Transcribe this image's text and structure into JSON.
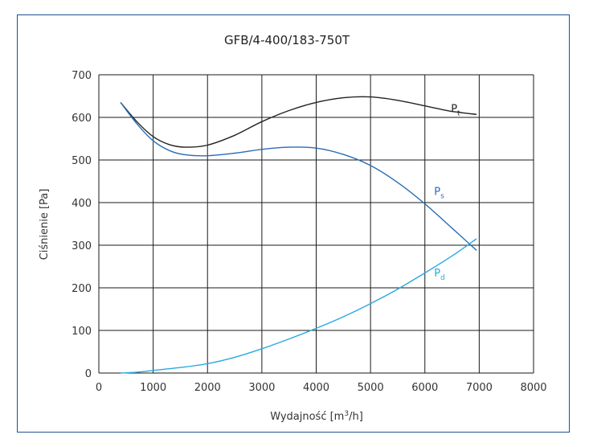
{
  "chart_data": {
    "type": "line",
    "title": "GFB/4-400/183-750T",
    "xlabel": {
      "main": "Wydajność [m",
      "sup": "3",
      "end": "/h]"
    },
    "ylabel": "Ciśnienie [Pa]",
    "xlim": [
      0,
      8000
    ],
    "ylim": [
      0,
      700
    ],
    "xticks": [
      "0",
      "1000",
      "2000",
      "3000",
      "4000",
      "5000",
      "6000",
      "7000",
      "8000"
    ],
    "yticks": [
      "0",
      "100",
      "200",
      "300",
      "400",
      "500",
      "600",
      "700"
    ],
    "grid": true,
    "series": [
      {
        "name": "Pt",
        "label_main": "P",
        "label_sub": "t",
        "color": "#222222",
        "x": [
          400,
          700,
          1000,
          1300,
          1600,
          2000,
          2500,
          3000,
          3500,
          4000,
          4500,
          5000,
          5500,
          6000,
          6500,
          6950
        ],
        "y": [
          635,
          590,
          555,
          536,
          530,
          535,
          558,
          590,
          616,
          635,
          646,
          648,
          640,
          627,
          614,
          607
        ]
      },
      {
        "name": "Ps",
        "label_main": "P",
        "label_sub": "s",
        "color": "#2a6db5",
        "x": [
          400,
          700,
          1000,
          1300,
          1600,
          2000,
          2500,
          3000,
          3500,
          4000,
          4500,
          5000,
          5500,
          6000,
          6500,
          6950
        ],
        "y": [
          635,
          585,
          545,
          522,
          512,
          510,
          516,
          525,
          530,
          528,
          513,
          487,
          447,
          397,
          340,
          288
        ]
      },
      {
        "name": "Pd",
        "label_main": "P",
        "label_sub": "d",
        "color": "#29a9e0",
        "x": [
          400,
          700,
          1000,
          1500,
          2000,
          2500,
          3000,
          3500,
          4000,
          4500,
          5000,
          5500,
          6000,
          6500,
          6950
        ],
        "y": [
          0,
          2,
          6,
          13,
          22,
          37,
          57,
          80,
          105,
          132,
          163,
          197,
          235,
          275,
          315
        ]
      }
    ]
  }
}
